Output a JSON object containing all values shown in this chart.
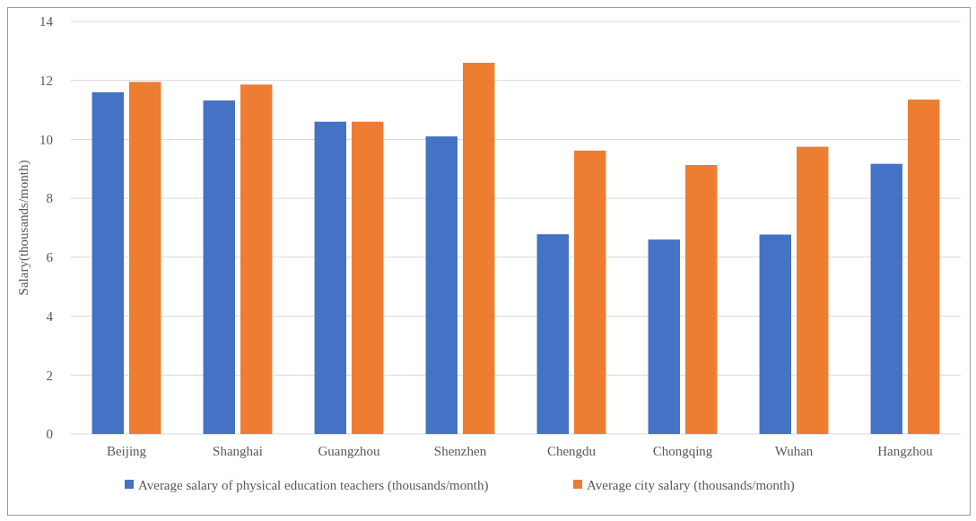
{
  "chart_data": {
    "type": "bar",
    "ylabel": "Salary(thousands/month)",
    "categories": [
      "Beijing",
      "Shanghai",
      "Guangzhou",
      "Shenzhen",
      "Chengdu",
      "Chongqing",
      "Wuhan",
      "Hangzhou"
    ],
    "series": [
      {
        "name": "Average salary of physical education teachers (thousands/month)",
        "color": "#4472c4",
        "values": [
          11.6,
          11.32,
          10.6,
          10.1,
          6.78,
          6.6,
          6.77,
          9.17
        ]
      },
      {
        "name": "Average city salary (thousands/month)",
        "color": "#ed7d31",
        "values": [
          11.95,
          11.86,
          10.6,
          12.6,
          9.62,
          9.13,
          9.75,
          11.35
        ]
      }
    ],
    "ylim": [
      0,
      14
    ],
    "yticks": [
      0,
      2,
      4,
      6,
      8,
      10,
      12,
      14
    ],
    "grid": "y",
    "legend": "bottom"
  }
}
